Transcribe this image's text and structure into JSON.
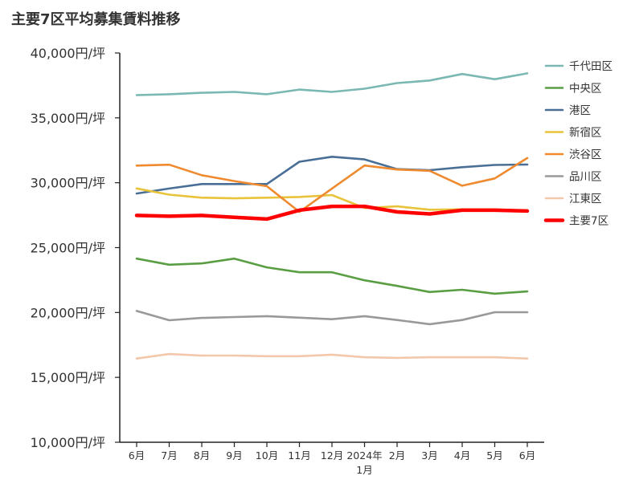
{
  "chart_data": {
    "type": "line",
    "title": "主要7区平均募集賃料推移",
    "xlabel": "",
    "ylabel": "",
    "ylim": [
      10000,
      40000
    ],
    "yticks": [
      40000,
      35000,
      30000,
      25000,
      20000,
      15000,
      10000
    ],
    "ytick_labels": [
      "40,000円/坪",
      "35,000円/坪",
      "30,000円/坪",
      "25,000円/坪",
      "20,000円/坪",
      "15,000円/坪",
      "10,000円/坪"
    ],
    "categories": [
      "6月",
      "7月",
      "8月",
      "9月",
      "10月",
      "11月",
      "12月",
      "2024年1月",
      "2月",
      "3月",
      "4月",
      "5月",
      "6月"
    ],
    "category_label_lines": [
      [
        "6月"
      ],
      [
        "7月"
      ],
      [
        "8月"
      ],
      [
        "9月"
      ],
      [
        "10月"
      ],
      [
        "11月"
      ],
      [
        "12月"
      ],
      [
        "2024年",
        "1月"
      ],
      [
        "2月"
      ],
      [
        "3月"
      ],
      [
        "4月"
      ],
      [
        "5月"
      ],
      [
        "6月"
      ]
    ],
    "grid": false,
    "legend_position": "right",
    "series": [
      {
        "name": "千代田区",
        "color": "#7ab8b3",
        "emphasis": false,
        "values": [
          36750,
          36820,
          36930,
          37000,
          36820,
          37180,
          37000,
          37250,
          37680,
          37880,
          38380,
          37980,
          38430
        ]
      },
      {
        "name": "中央区",
        "color": "#5a9e43",
        "emphasis": false,
        "values": [
          24150,
          23680,
          23780,
          24150,
          23480,
          23100,
          23100,
          22480,
          22050,
          21580,
          21750,
          21450,
          21620
        ]
      },
      {
        "name": "港区",
        "color": "#4a6f96",
        "emphasis": false,
        "values": [
          29170,
          29550,
          29900,
          29900,
          29900,
          31620,
          32000,
          31800,
          31050,
          30970,
          31200,
          31370,
          31400
        ]
      },
      {
        "name": "新宿区",
        "color": "#e8c33b",
        "emphasis": false,
        "values": [
          29560,
          29080,
          28850,
          28800,
          28850,
          28900,
          29050,
          28050,
          28180,
          27920,
          27950,
          27950,
          27850
        ]
      },
      {
        "name": "渋谷区",
        "color": "#ef8a2f",
        "emphasis": false,
        "values": [
          31320,
          31390,
          30580,
          30130,
          29730,
          27750,
          29550,
          31330,
          31020,
          30920,
          29770,
          30330,
          31900
        ]
      },
      {
        "name": "品川区",
        "color": "#999999",
        "emphasis": false,
        "values": [
          20120,
          19400,
          19580,
          19650,
          19720,
          19600,
          19480,
          19720,
          19420,
          19100,
          19420,
          20020,
          20020
        ]
      },
      {
        "name": "江東区",
        "color": "#f3c7aa",
        "emphasis": false,
        "values": [
          16450,
          16800,
          16680,
          16680,
          16630,
          16630,
          16750,
          16550,
          16500,
          16550,
          16550,
          16550,
          16450
        ]
      },
      {
        "name": "主要7区",
        "color": "#ff0000",
        "emphasis": true,
        "values": [
          27480,
          27420,
          27480,
          27330,
          27200,
          27880,
          28180,
          28180,
          27750,
          27600,
          27880,
          27880,
          27820
        ]
      }
    ]
  }
}
